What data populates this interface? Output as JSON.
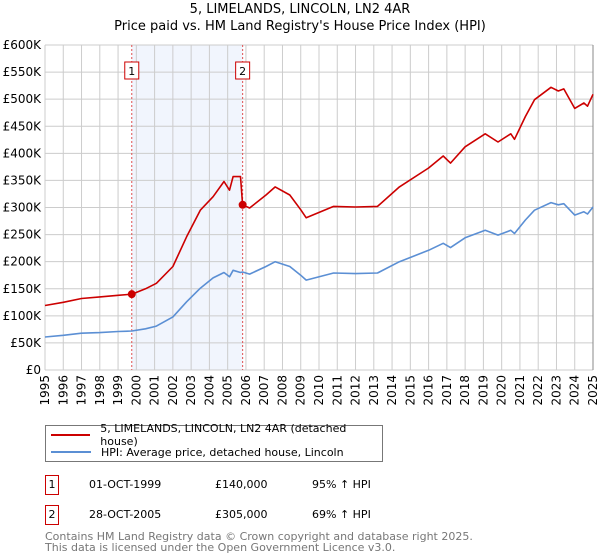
{
  "chart_data": {
    "type": "line",
    "title": "5, LIMELANDS, LINCOLN, LN2 4AR",
    "subtitle": "Price paid vs. HM Land Registry's House Price Index (HPI)",
    "xlabel": "",
    "ylabel": "",
    "xlim": [
      1995,
      2025
    ],
    "ylim": [
      0,
      600000
    ],
    "grid": true,
    "x_ticks": [
      "1995",
      "1996",
      "1997",
      "1998",
      "1999",
      "2000",
      "2001",
      "2002",
      "2003",
      "2004",
      "2005",
      "2006",
      "2007",
      "2008",
      "2009",
      "2010",
      "2011",
      "2012",
      "2013",
      "2014",
      "2015",
      "2016",
      "2017",
      "2018",
      "2019",
      "2020",
      "2021",
      "2022",
      "2023",
      "2024",
      "2025"
    ],
    "y_ticks": [
      {
        "value": 0,
        "label": "£0"
      },
      {
        "value": 50000,
        "label": "£50K"
      },
      {
        "value": 100000,
        "label": "£100K"
      },
      {
        "value": 150000,
        "label": "£150K"
      },
      {
        "value": 200000,
        "label": "£200K"
      },
      {
        "value": 250000,
        "label": "£250K"
      },
      {
        "value": 300000,
        "label": "£300K"
      },
      {
        "value": 350000,
        "label": "£350K"
      },
      {
        "value": 400000,
        "label": "£400K"
      },
      {
        "value": 450000,
        "label": "£450K"
      },
      {
        "value": 500000,
        "label": "£500K"
      },
      {
        "value": 550000,
        "label": "£550K"
      },
      {
        "value": 600000,
        "label": "£600K"
      }
    ],
    "x": [
      1995.0,
      1996,
      1997,
      1998,
      1999,
      1999.75,
      2000.5,
      2001.1,
      2002,
      2002.75,
      2003.5,
      2004.2,
      2004.8,
      2005.1,
      2005.3,
      2005.7,
      2005.82,
      2006.2,
      2007.1,
      2007.6,
      2008.4,
      2009,
      2009.3,
      2010.8,
      2012,
      2013.2,
      2014.4,
      2016,
      2016.8,
      2017.2,
      2018,
      2019.1,
      2019.8,
      2020.5,
      2020.7,
      2021.3,
      2021.8,
      2022.7,
      2023.1,
      2023.4,
      2024,
      2024.5,
      2024.7,
      2025
    ],
    "series": [
      {
        "name": "5, LIMELANDS, LINCOLN, LN2 4AR (detached house)",
        "color": "#cc0000",
        "values": [
          119000,
          125000,
          132000,
          135000,
          138000,
          140000,
          150000,
          160000,
          191000,
          246000,
          295000,
          320000,
          348000,
          332000,
          357000,
          357000,
          305000,
          299000,
          323000,
          338000,
          323000,
          296000,
          281000,
          302000,
          301000,
          302000,
          338000,
          373000,
          395000,
          382000,
          412000,
          436000,
          421000,
          436000,
          426000,
          468000,
          499000,
          522000,
          515000,
          519000,
          483000,
          493000,
          487000,
          509000
        ]
      },
      {
        "name": "HPI: Average price, detached house, Lincoln",
        "color": "#5b8fd4",
        "values": [
          61000,
          64000,
          68000,
          69000,
          71000,
          72000,
          76000,
          81000,
          98000,
          126000,
          151000,
          170000,
          180000,
          172000,
          184000,
          180000,
          181000,
          177000,
          191000,
          200000,
          191000,
          175000,
          166000,
          179000,
          178000,
          179000,
          200000,
          221000,
          234000,
          226000,
          244000,
          258000,
          249000,
          258000,
          252000,
          277000,
          295000,
          309000,
          305000,
          307000,
          286000,
          292000,
          288000,
          301000
        ]
      }
    ],
    "annotations": [
      {
        "label": "1",
        "x": 1999.75,
        "y": 140000
      },
      {
        "label": "2",
        "x": 2005.82,
        "y": 305000
      }
    ],
    "legend_placement": "bottom"
  },
  "sales": [
    {
      "num": "1",
      "date": "01-OCT-1999",
      "price": "£140,000",
      "hpi": "95% ↑ HPI"
    },
    {
      "num": "2",
      "date": "28-OCT-2005",
      "price": "£305,000",
      "hpi": "69% ↑ HPI"
    }
  ],
  "footer": {
    "line1": "Contains HM Land Registry data © Crown copyright and database right 2025.",
    "line2": "This data is licensed under the Open Government Licence v3.0."
  }
}
